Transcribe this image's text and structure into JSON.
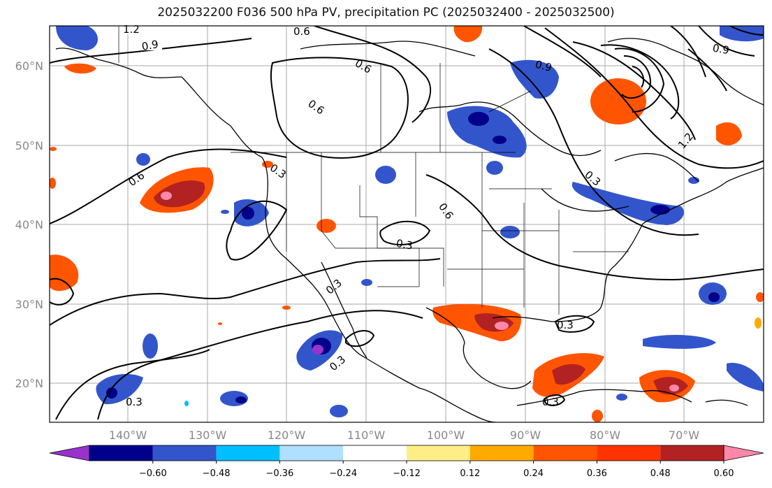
{
  "title": "2025032200 F036 500 hPa PV, precipitation PC (2025032400 - 2025032500)",
  "map": {
    "lat_labels": [
      "60°N",
      "50°N",
      "40°N",
      "30°N",
      "20°N"
    ],
    "lon_labels": [
      "140°W",
      "130°W",
      "120°W",
      "110°W",
      "100°W",
      "90°W",
      "80°W",
      "70°W"
    ],
    "contour_labels": [
      "1.2",
      "0.9",
      "0.6",
      "0.6",
      "0.9",
      "0.6",
      "0.9",
      "0.6",
      "0.3",
      "0.6",
      "0.3",
      "0.3",
      "0.3",
      "0.3",
      "0.3",
      "0.3",
      "1.2",
      "0.3"
    ]
  },
  "colorbar": {
    "colors": [
      "#9933cc",
      "#00008b",
      "#3355cc",
      "#00bfff",
      "#b0e0ff",
      "#ffffff",
      "#ffee88",
      "#ffaa00",
      "#ff5500",
      "#ff3300",
      "#b22222",
      "#ff88aa"
    ],
    "ticks": [
      "−0.60",
      "−0.48",
      "−0.36",
      "−0.24",
      "−0.12",
      "0.12",
      "0.24",
      "0.36",
      "0.48",
      "0.60"
    ]
  }
}
